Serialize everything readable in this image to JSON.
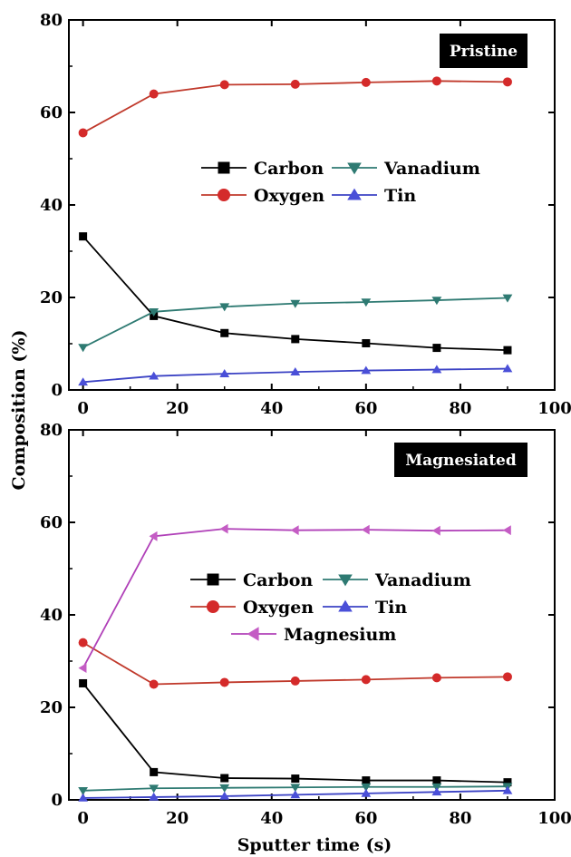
{
  "figure": {
    "ylabel": "Composition (%)",
    "xlabel": "Sputter time (s)"
  },
  "chart_data": [
    {
      "type": "line",
      "title": "Pristine",
      "xlim": [
        -3,
        100
      ],
      "ylim": [
        0,
        80
      ],
      "xticks": [
        0,
        20,
        40,
        60,
        80,
        100
      ],
      "yticks": [
        0,
        20,
        40,
        60,
        80
      ],
      "legend": "center-right",
      "grid": false,
      "x": [
        0,
        15,
        30,
        45,
        60,
        75,
        90
      ],
      "series": [
        {
          "name": "Carbon",
          "marker": "square",
          "color": "#000000",
          "line_color": "#000000",
          "values": [
            33.2,
            16.0,
            12.3,
            11.0,
            10.1,
            9.1,
            8.6
          ]
        },
        {
          "name": "Vanadium",
          "marker": "triangle-down",
          "color": "#2e7a72",
          "line_color": "#2e7a72",
          "values": [
            9.2,
            16.9,
            18.0,
            18.7,
            19.0,
            19.4,
            19.9
          ]
        },
        {
          "name": "Oxygen",
          "marker": "circle",
          "color": "#d42a2a",
          "line_color": "#c0392b",
          "values": [
            55.6,
            64.0,
            66.0,
            66.1,
            66.5,
            66.8,
            66.6
          ]
        },
        {
          "name": "Tin",
          "marker": "triangle-up",
          "color": "#4a4fd8",
          "line_color": "#3b42c4",
          "values": [
            1.7,
            3.0,
            3.5,
            3.9,
            4.2,
            4.4,
            4.6
          ]
        }
      ]
    },
    {
      "type": "line",
      "title": "Magnesiated",
      "xlim": [
        -3,
        100
      ],
      "ylim": [
        0,
        80
      ],
      "xticks": [
        0,
        20,
        40,
        60,
        80,
        100
      ],
      "yticks": [
        0,
        20,
        40,
        60,
        80
      ],
      "legend": "center-right",
      "grid": false,
      "x": [
        0,
        15,
        30,
        45,
        60,
        75,
        90
      ],
      "series": [
        {
          "name": "Carbon",
          "marker": "square",
          "color": "#000000",
          "line_color": "#000000",
          "values": [
            25.2,
            6.0,
            4.7,
            4.6,
            4.2,
            4.2,
            3.8
          ]
        },
        {
          "name": "Vanadium",
          "marker": "triangle-down",
          "color": "#2e7a72",
          "line_color": "#2e7a72",
          "values": [
            2.0,
            2.5,
            2.6,
            2.7,
            2.8,
            2.8,
            2.9
          ]
        },
        {
          "name": "Oxygen",
          "marker": "circle",
          "color": "#d42a2a",
          "line_color": "#c0392b",
          "values": [
            34.0,
            25.0,
            25.4,
            25.7,
            26.0,
            26.4,
            26.6
          ]
        },
        {
          "name": "Tin",
          "marker": "triangle-up",
          "color": "#4a4fd8",
          "line_color": "#3b42c4",
          "values": [
            0.4,
            0.6,
            0.8,
            1.1,
            1.4,
            1.7,
            2.0
          ]
        },
        {
          "name": "Magnesium",
          "marker": "triangle-left",
          "color": "#c45cc4",
          "line_color": "#b040b8",
          "values": [
            28.5,
            57.0,
            58.6,
            58.3,
            58.4,
            58.2,
            58.3
          ]
        }
      ]
    }
  ]
}
